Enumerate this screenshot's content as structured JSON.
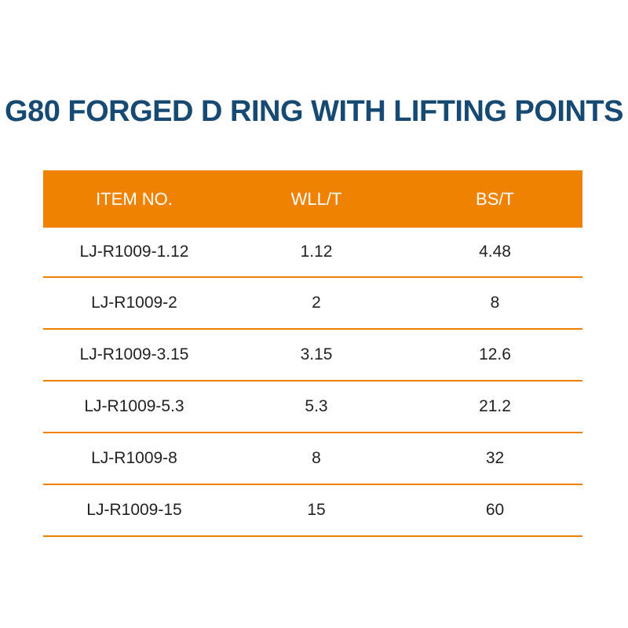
{
  "title": "G80 FORGED D RING WITH LIFTING POINTS",
  "colors": {
    "title": "#164a73",
    "header_bg": "#ef8200",
    "row_divider": "#ef8200"
  },
  "table": {
    "headers": [
      "ITEM NO.",
      "WLL/T",
      "BS/T"
    ],
    "rows": [
      [
        "LJ-R1009-1.12",
        "1.12",
        "4.48"
      ],
      [
        "LJ-R1009-2",
        "2",
        "8"
      ],
      [
        "LJ-R1009-3.15",
        "3.15",
        "12.6"
      ],
      [
        "LJ-R1009-5.3",
        "5.3",
        "21.2"
      ],
      [
        "LJ-R1009-8",
        "8",
        "32"
      ],
      [
        "LJ-R1009-15",
        "15",
        "60"
      ]
    ]
  }
}
